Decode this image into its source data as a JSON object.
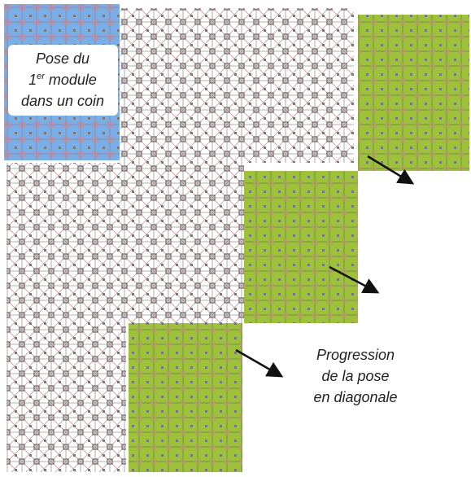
{
  "labels": {
    "first": [
      "Pose du",
      {
        "base": "1",
        "sup": "er",
        "rest": " module"
      },
      "dans un coin"
    ],
    "second": [
      "Progression",
      "de la pose",
      "en diagonale"
    ]
  }
}
